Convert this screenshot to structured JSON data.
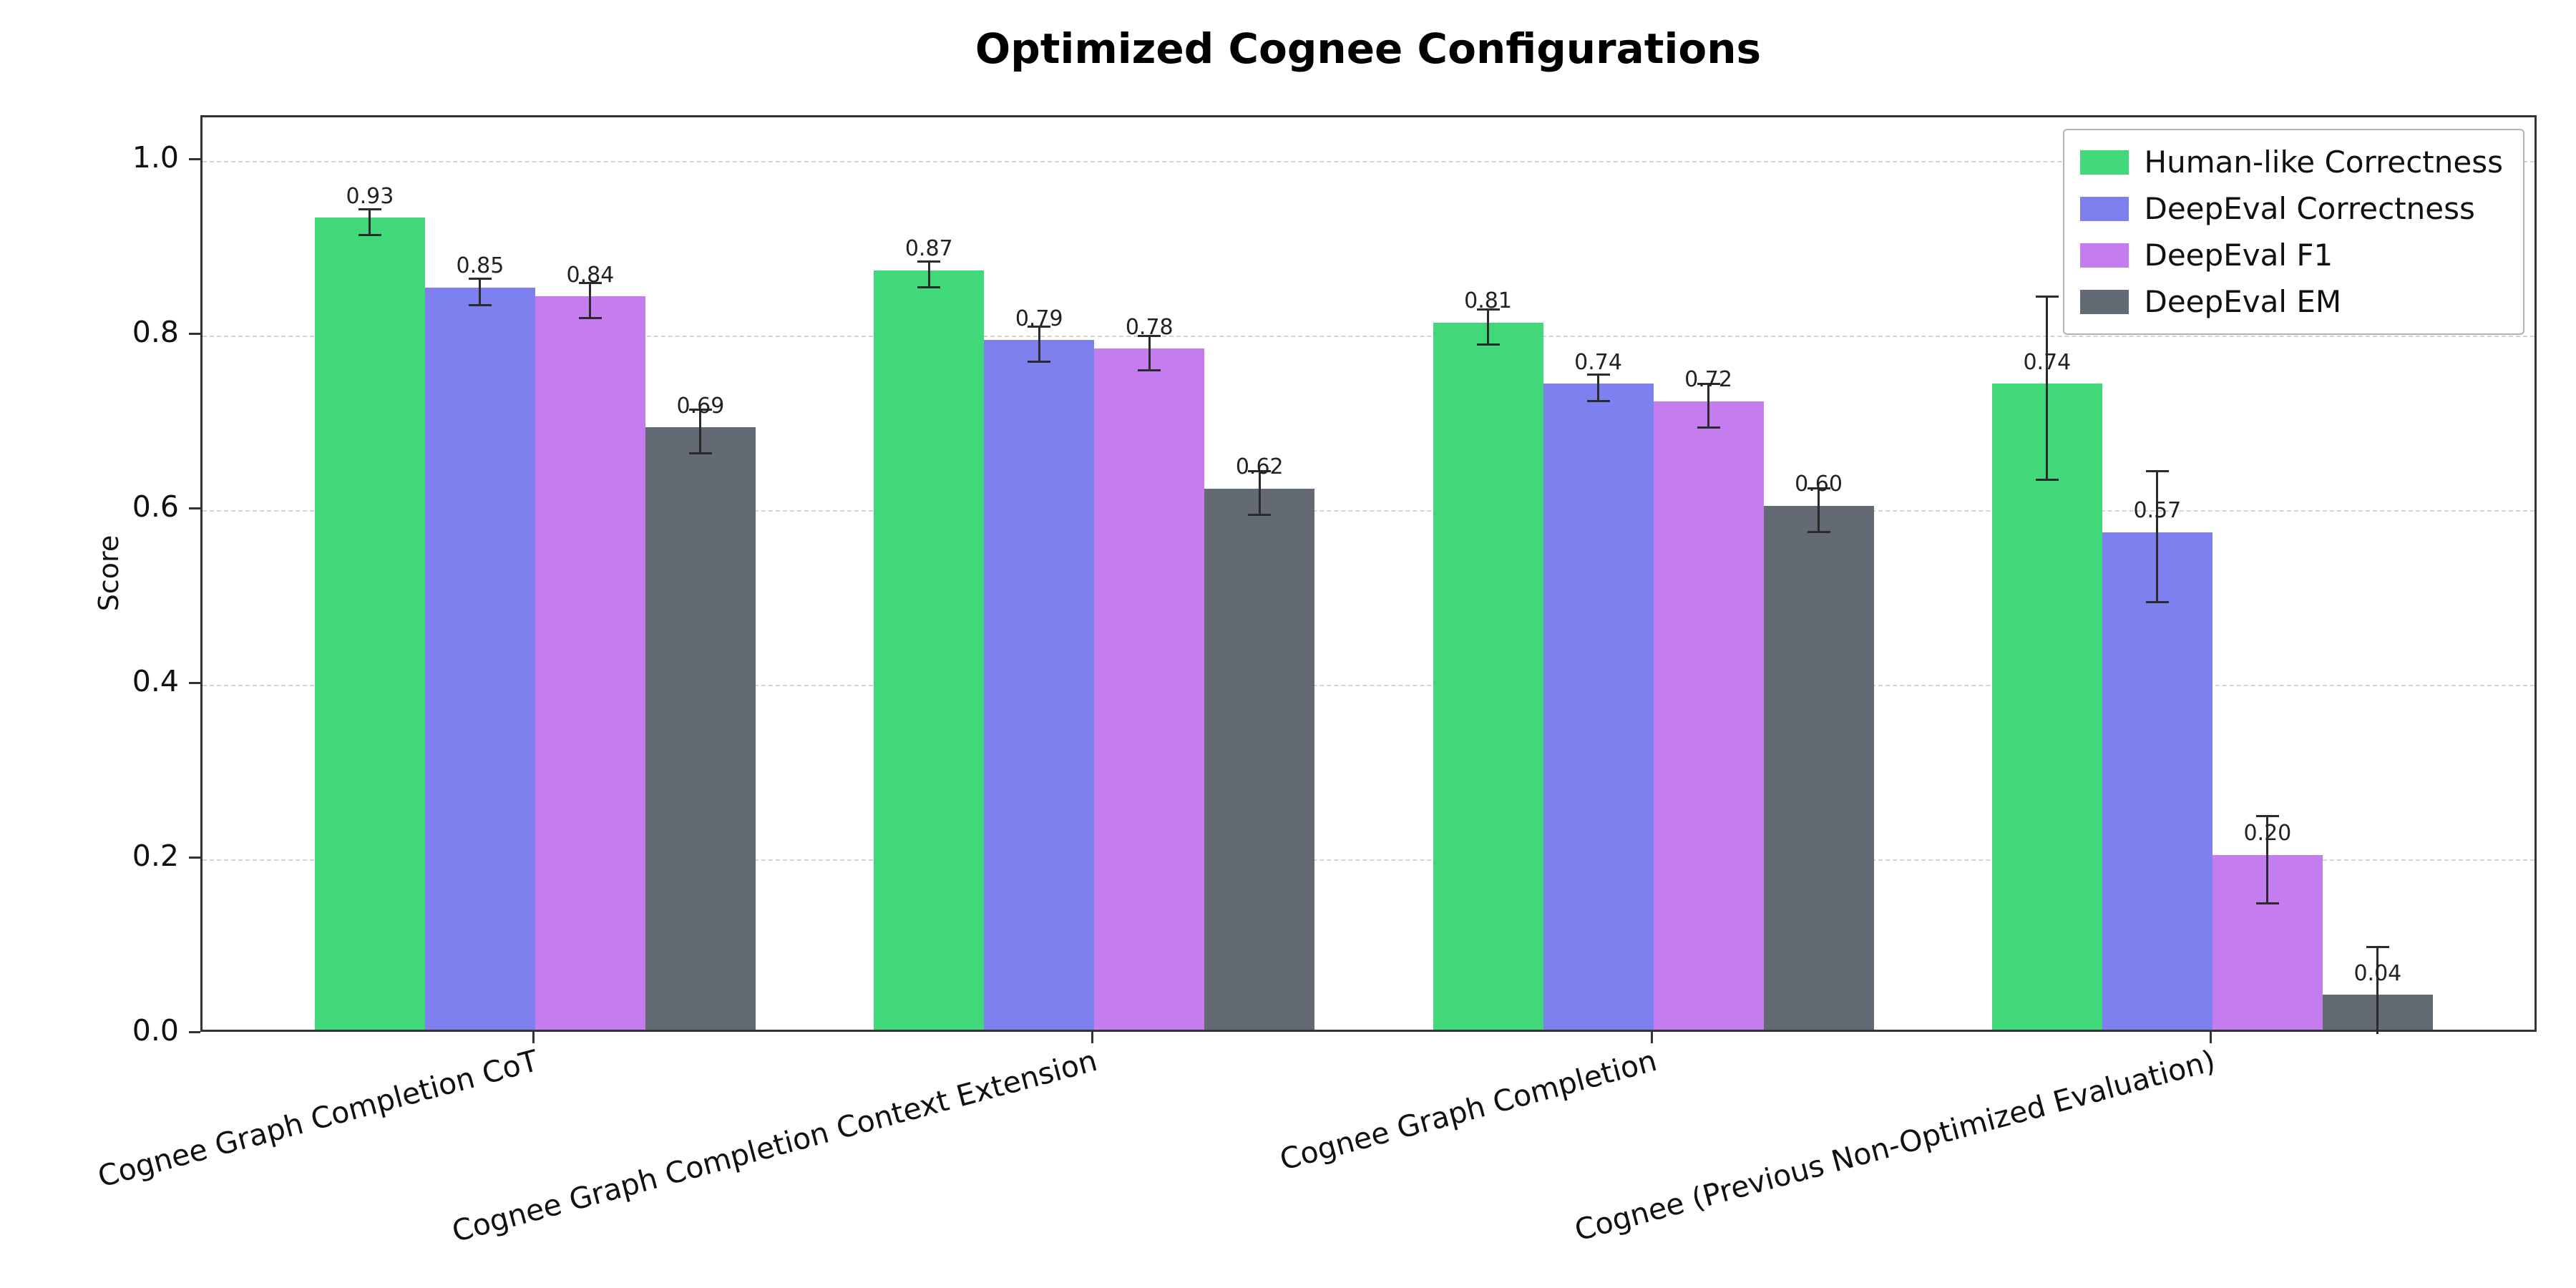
{
  "chart_data": {
    "type": "bar",
    "title": "Optimized Cognee Configurations",
    "xlabel": "",
    "ylabel": "Score",
    "ylim": [
      0.0,
      1.05
    ],
    "yticks": [
      0.0,
      0.2,
      0.4,
      0.6,
      0.8,
      1.0
    ],
    "grid": "horizontal-dashed",
    "legend_position": "upper-right",
    "bar_label_decimals": 2,
    "error_bar_color": "#2b2b2b",
    "categories": [
      "Cognee Graph Completion CoT",
      "Cognee Graph Completion Context Extension",
      "Cognee Graph Completion",
      "Cognee (Previous Non-Optimized Evaluation)"
    ],
    "series": [
      {
        "name": "Human-like Correctness",
        "color": "#41d87a",
        "values": [
          0.93,
          0.87,
          0.81,
          0.74
        ],
        "errors": [
          0.015,
          0.015,
          0.02,
          0.105
        ]
      },
      {
        "name": "DeepEval Correctness",
        "color": "#7d80ee",
        "values": [
          0.85,
          0.79,
          0.74,
          0.57
        ],
        "errors": [
          0.015,
          0.02,
          0.015,
          0.075
        ]
      },
      {
        "name": "DeepEval F1",
        "color": "#c47cee",
        "values": [
          0.84,
          0.78,
          0.72,
          0.2
        ],
        "errors": [
          0.02,
          0.02,
          0.025,
          0.05
        ]
      },
      {
        "name": "DeepEval EM",
        "color": "#646a73",
        "values": [
          0.69,
          0.62,
          0.6,
          0.04
        ],
        "errors": [
          0.025,
          0.025,
          0.025,
          0.06
        ]
      }
    ]
  }
}
